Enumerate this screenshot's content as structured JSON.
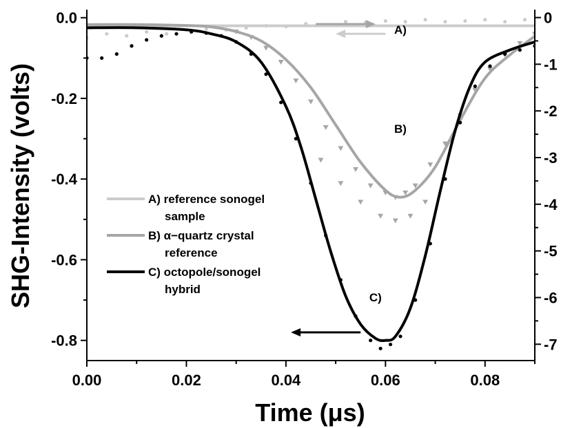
{
  "chart_data": {
    "type": "line",
    "xlabel": "Time (μs)",
    "ylabel": "SHG-Intensity (volts)",
    "xlim": [
      0.0,
      0.09
    ],
    "ylim": [
      -0.85,
      0.02
    ],
    "y2lim": [
      -7.35,
      0.17
    ],
    "x_ticks": [
      "0.00",
      "0.02",
      "0.04",
      "0.06",
      "0.08"
    ],
    "y_ticks": [
      "0.0",
      "-0.2",
      "-0.4",
      "-0.6",
      "-0.8"
    ],
    "y2_ticks": [
      "0",
      "-1",
      "-2",
      "-3",
      "-4",
      "-5",
      "-6",
      "-7"
    ],
    "grid": false,
    "legend_position": "center-left",
    "legend": [
      {
        "key": "A",
        "lines": [
          "A) reference sonogel",
          "sample"
        ],
        "color": "#cccccc"
      },
      {
        "key": "B",
        "lines": [
          "B) α−quartz crystal",
          "reference"
        ],
        "color": "#a6a6a6"
      },
      {
        "key": "C",
        "lines": [
          "C) octopole/sonogel",
          "hybrid"
        ],
        "color": "#000000"
      }
    ],
    "annotations": [
      {
        "label": "A)",
        "x": 0.063,
        "y": -0.04
      },
      {
        "label": "B)",
        "x": 0.063,
        "y": -0.285
      },
      {
        "label": "C)",
        "x": 0.058,
        "y": -0.703
      }
    ],
    "arrows": [
      {
        "series": "A",
        "axis": "left",
        "direction": "left",
        "x_from": 0.06,
        "x_to": 0.05,
        "y": -0.04,
        "color": "#cccccc"
      },
      {
        "series": "B",
        "axis": "right",
        "direction": "right",
        "x_from": 0.046,
        "x_to": 0.058,
        "y": -0.14,
        "color": "#a6a6a6"
      },
      {
        "series": "C",
        "axis": "left",
        "direction": "left",
        "x_from": 0.055,
        "x_to": 0.041,
        "y": -0.78,
        "color": "#000000"
      }
    ],
    "series": [
      {
        "key": "A",
        "name": "A) reference sonogel sample",
        "axis": "left",
        "color": "#cccccc",
        "fit": {
          "x": [
            0.0,
            0.09
          ],
          "y": [
            -0.02,
            -0.02
          ]
        },
        "points": {
          "marker": "dot",
          "x": [
            0.0,
            0.004,
            0.008,
            0.012,
            0.016,
            0.02,
            0.024,
            0.028,
            0.032,
            0.036,
            0.04,
            0.044,
            0.048,
            0.052,
            0.056,
            0.06,
            0.064,
            0.068,
            0.072,
            0.076,
            0.08,
            0.084,
            0.088
          ],
          "y": [
            -0.05,
            -0.04,
            -0.045,
            -0.035,
            -0.04,
            -0.03,
            -0.028,
            -0.03,
            -0.025,
            -0.02,
            -0.022,
            -0.015,
            -0.018,
            -0.01,
            -0.012,
            -0.008,
            -0.01,
            -0.005,
            -0.01,
            -0.008,
            -0.005,
            -0.01,
            -0.005
          ]
        }
      },
      {
        "key": "B",
        "name": "B) α−quartz crystal reference",
        "axis": "right",
        "color": "#a6a6a6",
        "fit": {
          "x": [
            0.0,
            0.01,
            0.02,
            0.025,
            0.03,
            0.035,
            0.04,
            0.045,
            0.05,
            0.055,
            0.06,
            0.063,
            0.066,
            0.07,
            0.075,
            0.08,
            0.085,
            0.09
          ],
          "y": [
            -0.15,
            -0.15,
            -0.17,
            -0.2,
            -0.3,
            -0.5,
            -0.9,
            -1.5,
            -2.3,
            -3.1,
            -3.7,
            -3.85,
            -3.7,
            -3.2,
            -2.2,
            -1.3,
            -0.8,
            -0.4
          ]
        },
        "points": {
          "marker": "triangle-down",
          "x": [
            0.03,
            0.033,
            0.036,
            0.039,
            0.042,
            0.045,
            0.048,
            0.051,
            0.054,
            0.057,
            0.06,
            0.062,
            0.064,
            0.066,
            0.069,
            0.072,
            0.075,
            0.078,
            0.081,
            0.084,
            0.087,
            0.09
          ],
          "y": [
            -0.3,
            -0.42,
            -0.65,
            -0.95,
            -1.35,
            -1.8,
            -2.35,
            -2.8,
            -3.25,
            -3.6,
            -3.75,
            -3.85,
            -3.75,
            -3.6,
            -3.15,
            -2.7,
            -2.1,
            -1.55,
            -1.1,
            -0.8,
            -0.55,
            -0.35
          ]
        },
        "extra_points": {
          "marker": "triangle-down",
          "x": [
            0.047,
            0.051,
            0.055,
            0.059,
            0.062,
            0.065,
            0.068
          ],
          "y": [
            -3.05,
            -3.55,
            -3.95,
            -4.25,
            -4.35,
            -4.25,
            -3.95
          ]
        }
      },
      {
        "key": "C",
        "name": "C) octopole/sonogel hybrid",
        "axis": "left",
        "color": "#000000",
        "fit": {
          "x": [
            0.0,
            0.01,
            0.02,
            0.025,
            0.03,
            0.035,
            0.04,
            0.043,
            0.046,
            0.049,
            0.052,
            0.055,
            0.058,
            0.06,
            0.062,
            0.065,
            0.068,
            0.071,
            0.074,
            0.077,
            0.08,
            0.085,
            0.09
          ],
          "y": [
            -0.025,
            -0.025,
            -0.03,
            -0.04,
            -0.06,
            -0.11,
            -0.22,
            -0.32,
            -0.45,
            -0.58,
            -0.69,
            -0.76,
            -0.795,
            -0.8,
            -0.79,
            -0.72,
            -0.59,
            -0.43,
            -0.28,
            -0.17,
            -0.11,
            -0.08,
            -0.06
          ]
        },
        "points": {
          "marker": "dot",
          "x": [
            0.0,
            0.003,
            0.006,
            0.009,
            0.012,
            0.015,
            0.018,
            0.021,
            0.024,
            0.027,
            0.03,
            0.033,
            0.036,
            0.039,
            0.042,
            0.045,
            0.048,
            0.051,
            0.054,
            0.057,
            0.059,
            0.061,
            0.063,
            0.066,
            0.069,
            0.072,
            0.075,
            0.078,
            0.081,
            0.084,
            0.087,
            0.09
          ],
          "y": [
            -0.1,
            -0.1,
            -0.09,
            -0.07,
            -0.055,
            -0.045,
            -0.04,
            -0.035,
            -0.038,
            -0.045,
            -0.06,
            -0.09,
            -0.14,
            -0.21,
            -0.3,
            -0.41,
            -0.54,
            -0.65,
            -0.74,
            -0.8,
            -0.82,
            -0.81,
            -0.79,
            -0.7,
            -0.56,
            -0.4,
            -0.26,
            -0.17,
            -0.12,
            -0.09,
            -0.08,
            -0.07
          ]
        }
      }
    ]
  }
}
